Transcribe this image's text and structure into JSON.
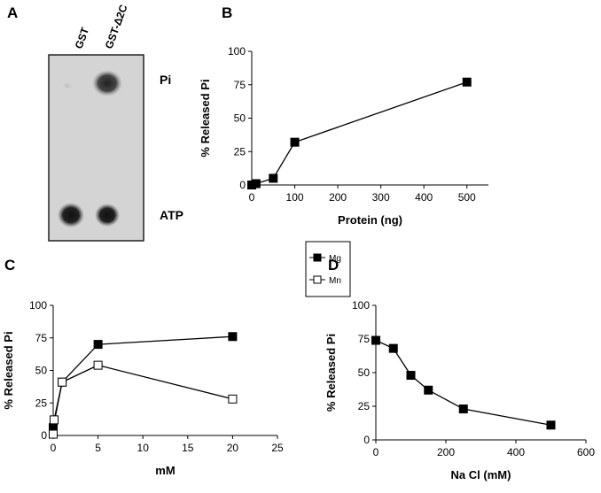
{
  "gel": {
    "panel": "A",
    "lanes": [
      "GST",
      "GST-Δ2C"
    ],
    "bands": [
      "Pi",
      "ATP"
    ]
  },
  "chart_data": [
    {
      "type": "line",
      "panel": "B",
      "y_label": "% Released Pi",
      "x_label": "Protein (ng)",
      "series": [
        {
          "color": "#000000",
          "marker_fill": "#000000",
          "x": [
            0,
            10,
            50,
            100,
            500
          ],
          "values": [
            0,
            1,
            5,
            32,
            77
          ]
        }
      ],
      "xlim": [
        0,
        550
      ],
      "xticks": [
        0,
        100,
        200,
        300,
        400,
        500
      ],
      "ylim": [
        0,
        100
      ],
      "yticks": [
        0,
        25,
        50,
        75,
        100
      ]
    },
    {
      "type": "line",
      "panel": "C",
      "y_label": "% Released Pi",
      "x_label": "mM",
      "series": [
        {
          "name": "Mg",
          "color": "#000000",
          "marker_fill": "#000000",
          "x": [
            0,
            1,
            5,
            20
          ],
          "values": [
            6,
            41,
            70,
            76
          ]
        },
        {
          "name": "Mn",
          "color": "#000000",
          "marker_fill": "#ffffff",
          "x": [
            0,
            0.1,
            1,
            5,
            20
          ],
          "values": [
            1,
            12,
            41,
            54,
            28
          ]
        }
      ],
      "xlim": [
        0,
        25
      ],
      "xticks": [
        0,
        5,
        10,
        15,
        20,
        25
      ],
      "ylim": [
        0,
        100
      ],
      "yticks": [
        0,
        25,
        50,
        75,
        100
      ]
    },
    {
      "type": "line",
      "panel": "D",
      "y_label": "% Released Pi",
      "x_label": "Na Cl (mM)",
      "series": [
        {
          "color": "#000000",
          "marker_fill": "#000000",
          "x": [
            0,
            50,
            100,
            150,
            250,
            500
          ],
          "values": [
            74,
            68,
            48,
            37,
            23,
            11
          ]
        }
      ],
      "xlim": [
        0,
        600
      ],
      "xticks": [
        0,
        200,
        400,
        600
      ],
      "ylim": [
        0,
        100
      ],
      "yticks": [
        0,
        25,
        50,
        75,
        100
      ]
    }
  ]
}
